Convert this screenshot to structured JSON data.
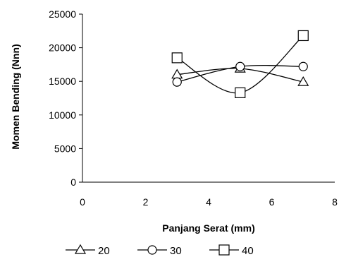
{
  "chart_data": {
    "type": "line",
    "xlabel": "Panjang Serat (mm)",
    "ylabel": "Momen Bending (Nnn)",
    "xlim": [
      0,
      8
    ],
    "ylim": [
      0,
      25000
    ],
    "xticks": [
      0,
      2,
      4,
      6,
      8
    ],
    "yticks": [
      0,
      5000,
      10000,
      15000,
      20000,
      25000
    ],
    "grid": false,
    "legend_position": "bottom",
    "series": [
      {
        "name": "20",
        "marker": "triangle",
        "color": "#000000",
        "x": [
          3,
          5,
          7
        ],
        "y": [
          16000,
          16900,
          14900
        ]
      },
      {
        "name": "30",
        "marker": "circle",
        "color": "#000000",
        "x": [
          3,
          5,
          7
        ],
        "y": [
          14900,
          17200,
          17200
        ]
      },
      {
        "name": "40",
        "marker": "square",
        "color": "#000000",
        "x": [
          3,
          5,
          7
        ],
        "y": [
          18500,
          13300,
          21800
        ]
      }
    ]
  }
}
